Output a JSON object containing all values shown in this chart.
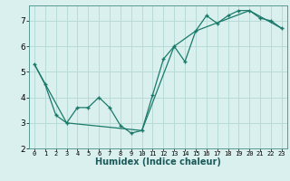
{
  "title": "",
  "xlabel": "Humidex (Indice chaleur)",
  "ylabel": "",
  "bg_color": "#daf0ee",
  "grid_color": "#b8dbd8",
  "line_color": "#1a7a6a",
  "xlim": [
    -0.5,
    23.5
  ],
  "ylim": [
    2,
    7.6
  ],
  "yticks": [
    2,
    3,
    4,
    5,
    6,
    7
  ],
  "xticks": [
    0,
    1,
    2,
    3,
    4,
    5,
    6,
    7,
    8,
    9,
    10,
    11,
    12,
    13,
    14,
    15,
    16,
    17,
    18,
    19,
    20,
    21,
    22,
    23
  ],
  "line1_x": [
    0,
    1,
    2,
    3,
    4,
    5,
    6,
    7,
    8,
    9,
    10,
    11,
    12,
    13,
    14,
    15,
    16,
    17,
    18,
    19,
    20,
    21,
    22,
    23
  ],
  "line1_y": [
    5.3,
    4.5,
    3.3,
    3.0,
    3.6,
    3.6,
    4.0,
    3.6,
    2.9,
    2.6,
    2.7,
    4.1,
    5.5,
    6.0,
    5.4,
    6.6,
    7.2,
    6.9,
    7.2,
    7.4,
    7.4,
    7.1,
    7.0,
    6.7
  ],
  "line2_x": [
    0,
    3,
    10,
    13,
    15,
    20,
    23
  ],
  "line2_y": [
    5.3,
    3.0,
    2.7,
    6.0,
    6.6,
    7.4,
    6.7
  ]
}
